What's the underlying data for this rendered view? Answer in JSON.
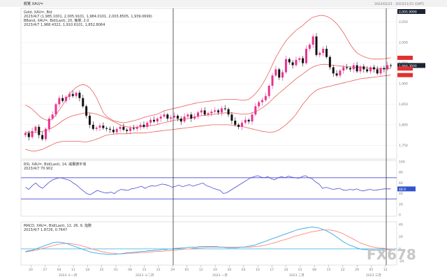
{
  "app": {
    "window_title": "概覽 XAU/=",
    "window_info": "2023/02/21 · 2023/11/15 (GMT)"
  },
  "theme": {
    "bull": "#e8338f",
    "bear": "#111111",
    "band": "#e8605a",
    "rsi": "#4a4ad6",
    "macd_fast": "#ff8a7a",
    "macd_slow": "#35a8e8",
    "macd_zero": "#33aadd",
    "tag_dark": "#1c2436",
    "tag_red": "#e03030",
    "tag_blue": "#3355cc",
    "grid": "#e6e6e6",
    "cursor": "#333333"
  },
  "price_panel": {
    "legend_title": "Gold, XAU=, Bid",
    "legend_lines": [
      "2023/4/7 (1,985.1001, 2,005.9101, 1,984.0101, 2,003.8505, 1,939.0699)",
      "BBand, XAU=, Bid(Last), 20, 簡單, 2.0",
      "2023/4/7  1,968.4322,  1,910.6101,  1,852.8064"
    ],
    "last_tag": "1,944.3600",
    "header_tag": "2,005.9999",
    "y_ticks": [
      "2,050",
      "2,000",
      "1,950",
      "1,900",
      "1,850",
      "1,800",
      "1,750"
    ]
  },
  "rsi_panel": {
    "legend_lines": [
      "RSI, XAU=, Bid(Last), 14, 威爾德平滑",
      "2023/4/7  70.902"
    ],
    "last_tag": "48.9",
    "y_ticks": [
      "100",
      "80",
      "60",
      "40",
      "20",
      "0"
    ]
  },
  "macd_panel": {
    "legend_lines": [
      "MACD, XAU=, Bid(Last), 12, 26, 9, 指數",
      "2023/4/7  1.8726,  0.7647"
    ],
    "y_ticks": [
      "40",
      "20",
      "0",
      "-20"
    ]
  },
  "x_axis": {
    "day_ticks": [
      "20",
      "27",
      "04",
      "11",
      "18",
      "25",
      "01",
      "08",
      "15",
      "22",
      "29",
      "05",
      "12",
      "19",
      "26",
      "03",
      "10",
      "17",
      "24",
      "01",
      "08",
      "15",
      "22",
      "29",
      "05",
      "12"
    ],
    "month_labels": [
      "2023 十一月",
      "2023 十二月",
      "2023 一月",
      "2023 二月",
      "2023 三月"
    ]
  },
  "watermark": "FX678",
  "chart_data": [
    {
      "type": "candlestick",
      "title": "Gold, XAU=, Bid",
      "ylim": [
        1720,
        2080
      ],
      "overlays": [
        "BBand upper",
        "BBand middle",
        "BBand lower"
      ],
      "close": [
        1780,
        1770,
        1785,
        1795,
        1775,
        1765,
        1790,
        1815,
        1825,
        1850,
        1865,
        1858,
        1868,
        1875,
        1870,
        1878,
        1865,
        1845,
        1822,
        1800,
        1790,
        1793,
        1798,
        1792,
        1790,
        1788,
        1782,
        1790,
        1795,
        1788,
        1785,
        1792,
        1790,
        1795,
        1800,
        1795,
        1805,
        1812,
        1808,
        1815,
        1820,
        1825,
        1815,
        1818,
        1822,
        1815,
        1808,
        1820,
        1825,
        1815,
        1820,
        1830,
        1835,
        1825,
        1828,
        1832,
        1835,
        1830,
        1840,
        1838,
        1825,
        1810,
        1800,
        1795,
        1805,
        1812,
        1808,
        1825,
        1845,
        1855,
        1860,
        1870,
        1895,
        1920,
        1935,
        1915,
        1928,
        1960,
        1952,
        1945,
        1958,
        1962,
        1950,
        1985,
        1995,
        2015,
        1970,
        1975,
        1985,
        1965,
        1940,
        1925,
        1920,
        1932,
        1940,
        1938,
        1935,
        1945,
        1930,
        1942,
        1935,
        1930,
        1940,
        1935,
        1925,
        1938,
        1935,
        1945,
        1944.36
      ],
      "bb_upper": [
        1848,
        1844,
        1838,
        1830,
        1822,
        1816,
        1812,
        1810,
        1814,
        1824,
        1836,
        1848,
        1862,
        1874,
        1884,
        1891,
        1896,
        1898,
        1896,
        1890,
        1880,
        1866,
        1848,
        1830,
        1820,
        1815,
        1810,
        1808,
        1806,
        1805,
        1806,
        1808,
        1810,
        1812,
        1815,
        1818,
        1820,
        1822,
        1824,
        1826,
        1830,
        1834,
        1836,
        1838,
        1840,
        1842,
        1844,
        1846,
        1848,
        1850,
        1852,
        1854,
        1855,
        1856,
        1857,
        1858,
        1859,
        1860,
        1861,
        1862,
        1862,
        1862,
        1862,
        1861,
        1860,
        1860,
        1862,
        1868,
        1876,
        1886,
        1898,
        1912,
        1928,
        1946,
        1964,
        1978,
        1992,
        2004,
        2014,
        2022,
        2030,
        2036,
        2042,
        2050,
        2056,
        2062,
        2064,
        2066,
        2066,
        2064,
        2060,
        2054,
        2046,
        2036,
        2024,
        2010,
        1996,
        1984,
        1975,
        1970,
        1966,
        1963,
        1961,
        1960,
        1960,
        1960,
        1961,
        1962,
        1963
      ],
      "bb_mid": [
        1782,
        1782,
        1782,
        1782,
        1783,
        1784,
        1786,
        1789,
        1793,
        1798,
        1804,
        1810,
        1815,
        1819,
        1822,
        1824,
        1826,
        1828,
        1829,
        1829,
        1828,
        1826,
        1823,
        1820,
        1816,
        1812,
        1808,
        1804,
        1800,
        1797,
        1795,
        1794,
        1794,
        1794,
        1795,
        1796,
        1797,
        1798,
        1799,
        1801,
        1803,
        1805,
        1807,
        1809,
        1811,
        1812,
        1813,
        1814,
        1815,
        1817,
        1819,
        1821,
        1822,
        1823,
        1824,
        1825,
        1826,
        1827,
        1828,
        1829,
        1829,
        1829,
        1828,
        1827,
        1826,
        1826,
        1827,
        1829,
        1832,
        1836,
        1841,
        1847,
        1854,
        1862,
        1870,
        1877,
        1884,
        1891,
        1898,
        1905,
        1912,
        1918,
        1924,
        1930,
        1936,
        1941,
        1944,
        1946,
        1947,
        1947,
        1946,
        1945,
        1944,
        1943,
        1942,
        1941,
        1941,
        1940,
        1940,
        1940,
        1939,
        1938,
        1937,
        1937,
        1937,
        1937,
        1937,
        1937,
        1937
      ],
      "bb_lower": [
        1740,
        1738,
        1736,
        1736,
        1738,
        1740,
        1744,
        1748,
        1752,
        1756,
        1758,
        1760,
        1760,
        1760,
        1760,
        1760,
        1760,
        1758,
        1758,
        1760,
        1762,
        1765,
        1768,
        1772,
        1775,
        1776,
        1777,
        1778,
        1778,
        1778,
        1778,
        1779,
        1780,
        1780,
        1780,
        1780,
        1781,
        1782,
        1783,
        1784,
        1785,
        1786,
        1787,
        1788,
        1789,
        1790,
        1791,
        1792,
        1793,
        1794,
        1795,
        1796,
        1797,
        1798,
        1799,
        1800,
        1800,
        1800,
        1800,
        1800,
        1800,
        1799,
        1798,
        1797,
        1796,
        1794,
        1792,
        1790,
        1788,
        1786,
        1784,
        1783,
        1782,
        1782,
        1784,
        1788,
        1794,
        1800,
        1808,
        1816,
        1826,
        1838,
        1850,
        1860,
        1870,
        1878,
        1884,
        1888,
        1890,
        1892,
        1894,
        1896,
        1898,
        1900,
        1902,
        1904,
        1906,
        1908,
        1910,
        1912,
        1913,
        1914,
        1915,
        1916,
        1917,
        1918,
        1919,
        1920,
        1921
      ]
    },
    {
      "type": "line",
      "title": "RSI, XAU=, Bid(Last), 14",
      "ylim": [
        0,
        100
      ],
      "hlines": [
        70,
        30
      ],
      "values": [
        52,
        48,
        55,
        60,
        54,
        50,
        56,
        62,
        66,
        68,
        70,
        69,
        67,
        65,
        60,
        56,
        50,
        45,
        40,
        38,
        42,
        46,
        44,
        42,
        41,
        43,
        40,
        45,
        48,
        47,
        46,
        49,
        50,
        52,
        54,
        50,
        53,
        55,
        54,
        56,
        58,
        57,
        55,
        52,
        54,
        56,
        53,
        55,
        57,
        54,
        56,
        58,
        60,
        55,
        53,
        50,
        48,
        46,
        40,
        42,
        46,
        50,
        54,
        58,
        62,
        66,
        70,
        72,
        74,
        71,
        70,
        72,
        68,
        66,
        70,
        72,
        70,
        73,
        71,
        70,
        69,
        72,
        74,
        70,
        68,
        62,
        58,
        50,
        52,
        50,
        48,
        49,
        50,
        47,
        46,
        48,
        47,
        49,
        46,
        45,
        47,
        48,
        46,
        47,
        48,
        49,
        49,
        48.9
      ]
    },
    {
      "type": "line",
      "title": "MACD, XAU=, Bid(Last), 12, 26, 9",
      "ylim": [
        -24,
        42
      ],
      "series": [
        {
          "name": "MACD",
          "values": [
            -4,
            -3,
            -2,
            0,
            2,
            4,
            6,
            8,
            10,
            11,
            11,
            10,
            9,
            7,
            5,
            3,
            1,
            -1,
            -3,
            -5,
            -6,
            -7,
            -8,
            -8,
            -9,
            -9,
            -9,
            -8,
            -8,
            -7,
            -6,
            -6,
            -5,
            -5,
            -4,
            -4,
            -3,
            -3,
            -2,
            -2,
            -1,
            -1,
            0,
            0,
            1,
            1,
            2,
            2,
            3,
            3,
            3,
            4,
            4,
            4,
            4,
            4,
            4,
            3,
            3,
            2,
            2,
            2,
            2,
            3,
            3,
            4,
            5,
            6,
            8,
            10,
            12,
            14,
            16,
            18,
            20,
            22,
            24,
            26,
            28,
            30,
            32,
            33,
            34,
            35,
            36,
            35,
            34,
            32,
            30,
            27,
            24,
            20,
            16,
            12,
            9,
            6,
            4,
            2,
            0,
            -1,
            -1,
            -2,
            -2,
            -2,
            -2,
            -1,
            -1,
            -1
          ]
        },
        {
          "name": "Signal",
          "values": [
            -5,
            -4,
            -3,
            -2,
            -1,
            1,
            2,
            4,
            5,
            7,
            8,
            9,
            9,
            9,
            8,
            7,
            6,
            4,
            3,
            1,
            -1,
            -2,
            -4,
            -5,
            -6,
            -7,
            -7,
            -8,
            -8,
            -8,
            -7,
            -7,
            -7,
            -6,
            -6,
            -6,
            -5,
            -5,
            -4,
            -4,
            -4,
            -3,
            -3,
            -2,
            -2,
            -1,
            -1,
            0,
            0,
            1,
            1,
            2,
            2,
            3,
            3,
            3,
            3,
            3,
            3,
            3,
            3,
            3,
            3,
            3,
            3,
            3,
            3,
            4,
            4,
            5,
            6,
            7,
            9,
            10,
            12,
            14,
            15,
            17,
            19,
            21,
            22,
            24,
            25,
            27,
            28,
            29,
            30,
            31,
            31,
            31,
            30,
            29,
            27,
            25,
            22,
            19,
            16,
            13,
            10,
            8,
            6,
            4,
            3,
            2,
            1,
            1,
            0,
            0
          ]
        }
      ]
    }
  ]
}
